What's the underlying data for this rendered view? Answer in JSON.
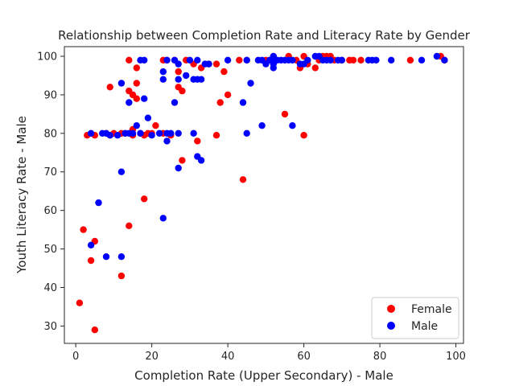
{
  "chart_data": {
    "type": "scatter",
    "title": "Relationship between Completion Rate and Literacy Rate by Gender",
    "xlabel": "Completion Rate (Upper Secondary) - Male",
    "ylabel": "Youth Literacy Rate - Male",
    "xlim": [
      -3,
      102
    ],
    "ylim": [
      25.5,
      102.5
    ],
    "xticks": [
      0,
      20,
      40,
      60,
      80,
      100
    ],
    "yticks": [
      30,
      40,
      50,
      60,
      70,
      80,
      90,
      100
    ],
    "grid": false,
    "legend_position": "lower right",
    "series": [
      {
        "name": "Female",
        "color": "#ff0000",
        "points": [
          [
            1,
            36
          ],
          [
            2,
            55
          ],
          [
            3,
            79.5
          ],
          [
            4,
            47
          ],
          [
            5,
            52
          ],
          [
            5,
            29
          ],
          [
            5,
            79.5
          ],
          [
            8,
            80
          ],
          [
            9,
            79.5
          ],
          [
            9,
            92
          ],
          [
            10,
            80
          ],
          [
            12,
            43
          ],
          [
            12,
            80
          ],
          [
            13,
            80
          ],
          [
            14,
            99
          ],
          [
            14,
            91
          ],
          [
            14,
            56
          ],
          [
            15,
            90
          ],
          [
            15,
            81
          ],
          [
            15,
            79.5
          ],
          [
            16,
            97
          ],
          [
            16,
            93
          ],
          [
            16,
            89
          ],
          [
            17,
            80
          ],
          [
            18,
            63
          ],
          [
            18,
            79.5
          ],
          [
            19,
            80
          ],
          [
            20,
            80
          ],
          [
            21,
            82
          ],
          [
            23,
            80
          ],
          [
            23,
            99
          ],
          [
            24,
            99
          ],
          [
            25,
            79.5
          ],
          [
            26,
            99
          ],
          [
            27,
            96
          ],
          [
            27,
            92
          ],
          [
            28,
            91
          ],
          [
            28,
            73
          ],
          [
            29,
            99
          ],
          [
            31,
            98
          ],
          [
            32,
            78
          ],
          [
            33,
            97
          ],
          [
            35,
            98
          ],
          [
            37,
            98
          ],
          [
            37,
            79.5
          ],
          [
            38,
            88
          ],
          [
            39,
            96
          ],
          [
            40,
            90
          ],
          [
            43,
            99
          ],
          [
            44,
            68
          ],
          [
            45,
            99
          ],
          [
            50,
            99
          ],
          [
            52,
            100
          ],
          [
            53,
            99
          ],
          [
            55,
            85
          ],
          [
            56,
            100
          ],
          [
            58,
            99
          ],
          [
            59,
            97
          ],
          [
            60,
            100
          ],
          [
            60,
            79.5
          ],
          [
            61,
            98
          ],
          [
            63,
            97
          ],
          [
            64,
            99
          ],
          [
            65,
            100
          ],
          [
            66,
            100
          ],
          [
            67,
            100
          ],
          [
            68,
            99
          ],
          [
            70,
            99
          ],
          [
            72,
            99
          ],
          [
            73,
            99
          ],
          [
            75,
            99
          ],
          [
            88,
            99
          ],
          [
            96,
            100
          ],
          [
            97,
            99
          ]
        ]
      },
      {
        "name": "Male",
        "color": "#0000ff",
        "points": [
          [
            4,
            51
          ],
          [
            4,
            80
          ],
          [
            6,
            62
          ],
          [
            7,
            80
          ],
          [
            8,
            48
          ],
          [
            8,
            80
          ],
          [
            9,
            79.5
          ],
          [
            11,
            79.5
          ],
          [
            12,
            93
          ],
          [
            12,
            70
          ],
          [
            12,
            48
          ],
          [
            13,
            80
          ],
          [
            14,
            88
          ],
          [
            14,
            80
          ],
          [
            15,
            80
          ],
          [
            16,
            82
          ],
          [
            17,
            99
          ],
          [
            17,
            80
          ],
          [
            18,
            99
          ],
          [
            18,
            89
          ],
          [
            19,
            84
          ],
          [
            20,
            79.5
          ],
          [
            22,
            80
          ],
          [
            23,
            96
          ],
          [
            23,
            94
          ],
          [
            23,
            58
          ],
          [
            24,
            99
          ],
          [
            24,
            80
          ],
          [
            24,
            78
          ],
          [
            25,
            80
          ],
          [
            26,
            88
          ],
          [
            26,
            99
          ],
          [
            27,
            98
          ],
          [
            27,
            94
          ],
          [
            27,
            80
          ],
          [
            27,
            71
          ],
          [
            29,
            95
          ],
          [
            30,
            99
          ],
          [
            31,
            94
          ],
          [
            31,
            80
          ],
          [
            32,
            99
          ],
          [
            32,
            74
          ],
          [
            32,
            94
          ],
          [
            33,
            94
          ],
          [
            33,
            73
          ],
          [
            34,
            98
          ],
          [
            35,
            98
          ],
          [
            40,
            99
          ],
          [
            44,
            88
          ],
          [
            45,
            99
          ],
          [
            45,
            80
          ],
          [
            46,
            93
          ],
          [
            48,
            99
          ],
          [
            49,
            82
          ],
          [
            49,
            99
          ],
          [
            50,
            98
          ],
          [
            51,
            99
          ],
          [
            52,
            100
          ],
          [
            52,
            99
          ],
          [
            52,
            98
          ],
          [
            52,
            97
          ],
          [
            53,
            99
          ],
          [
            54,
            99
          ],
          [
            55,
            99
          ],
          [
            56,
            99
          ],
          [
            57,
            82
          ],
          [
            57,
            99
          ],
          [
            59,
            98
          ],
          [
            60,
            98
          ],
          [
            61,
            99
          ],
          [
            63,
            100
          ],
          [
            64,
            100
          ],
          [
            65,
            99
          ],
          [
            66,
            99
          ],
          [
            67,
            99
          ],
          [
            69,
            99
          ],
          [
            70,
            99
          ],
          [
            77,
            99
          ],
          [
            78,
            99
          ],
          [
            79,
            99
          ],
          [
            83,
            99
          ],
          [
            91,
            99
          ],
          [
            95,
            100
          ],
          [
            97,
            99
          ]
        ]
      }
    ]
  }
}
